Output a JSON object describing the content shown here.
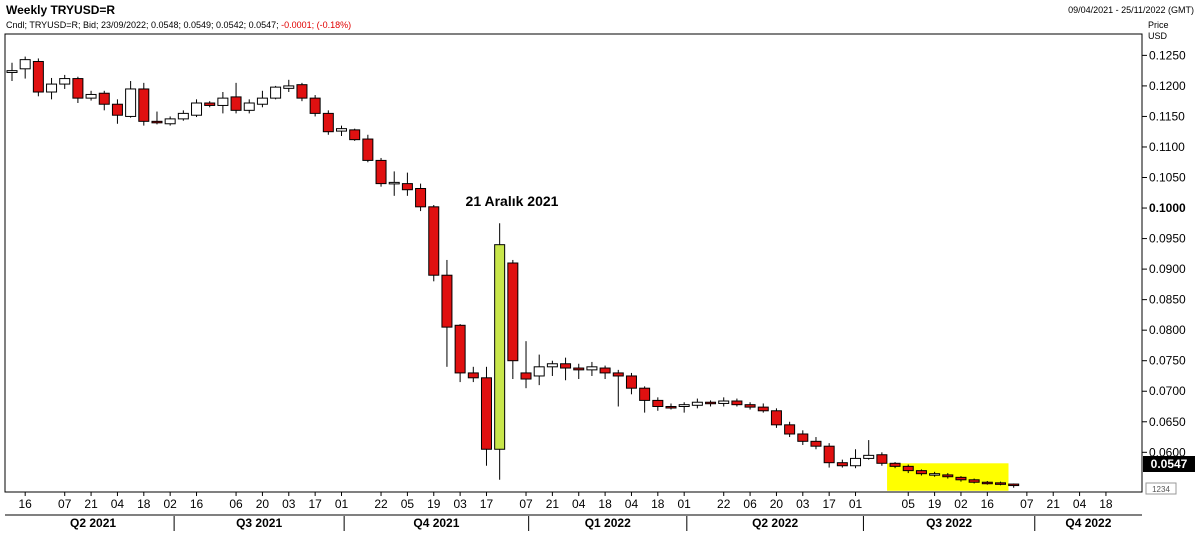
{
  "header": {
    "title": "Weekly TRYUSD=R",
    "legend_prefix": "Cndl; TRYUSD=R; Bid; 23/09/2022; 0.0548; 0.0549; 0.0542; 0.0547;",
    "legend_change": "-0.0001; (-0.18%)",
    "date_range": "09/04/2021 - 25/11/2022 (GMT)",
    "price_label_1": "Price",
    "price_label_2": "USD"
  },
  "annotation": {
    "text": "21 Aralık 2021"
  },
  "last_price": "0.0547",
  "corner_box": "1234",
  "chart_data": {
    "type": "candlestick",
    "ylim": [
      0.0535,
      0.1285
    ],
    "y_ticks": [
      {
        "value": 0.125,
        "label": "0.1250"
      },
      {
        "value": 0.12,
        "label": "0.1200"
      },
      {
        "value": 0.115,
        "label": "0.1150"
      },
      {
        "value": 0.11,
        "label": "0.1100"
      },
      {
        "value": 0.105,
        "label": "0.1050"
      },
      {
        "value": 0.1,
        "label": "0.1000"
      },
      {
        "value": 0.095,
        "label": "0.0950"
      },
      {
        "value": 0.09,
        "label": "0.0900"
      },
      {
        "value": 0.085,
        "label": "0.0850"
      },
      {
        "value": 0.08,
        "label": "0.0800"
      },
      {
        "value": 0.075,
        "label": "0.0750"
      },
      {
        "value": 0.07,
        "label": "0.0700"
      },
      {
        "value": 0.065,
        "label": "0.0650"
      },
      {
        "value": 0.06,
        "label": "0.0600"
      }
    ],
    "x_ticks": [
      {
        "week": 1,
        "label": "16"
      },
      {
        "week": 4,
        "label": "07"
      },
      {
        "week": 6,
        "label": "21"
      },
      {
        "week": 8,
        "label": "04"
      },
      {
        "week": 10,
        "label": "18"
      },
      {
        "week": 12,
        "label": "02"
      },
      {
        "week": 14,
        "label": "16"
      },
      {
        "week": 17,
        "label": "06"
      },
      {
        "week": 19,
        "label": "20"
      },
      {
        "week": 21,
        "label": "03"
      },
      {
        "week": 23,
        "label": "17"
      },
      {
        "week": 25,
        "label": "01"
      },
      {
        "week": 28,
        "label": "22"
      },
      {
        "week": 30,
        "label": "05"
      },
      {
        "week": 32,
        "label": "19"
      },
      {
        "week": 34,
        "label": "03"
      },
      {
        "week": 36,
        "label": "17"
      },
      {
        "week": 39,
        "label": "07"
      },
      {
        "week": 41,
        "label": "21"
      },
      {
        "week": 43,
        "label": "04"
      },
      {
        "week": 45,
        "label": "18"
      },
      {
        "week": 47,
        "label": "04"
      },
      {
        "week": 49,
        "label": "18"
      },
      {
        "week": 51,
        "label": "01"
      },
      {
        "week": 54,
        "label": "22"
      },
      {
        "week": 56,
        "label": "06"
      },
      {
        "week": 58,
        "label": "20"
      },
      {
        "week": 60,
        "label": "03"
      },
      {
        "week": 62,
        "label": "17"
      },
      {
        "week": 64,
        "label": "01"
      },
      {
        "week": 68,
        "label": "05"
      },
      {
        "week": 70,
        "label": "19"
      },
      {
        "week": 72,
        "label": "02"
      },
      {
        "week": 74,
        "label": "16"
      },
      {
        "week": 77,
        "label": "07"
      },
      {
        "week": 79,
        "label": "21"
      },
      {
        "week": 81,
        "label": "04"
      },
      {
        "week": 83,
        "label": "18"
      }
    ],
    "quarters": [
      "Q2 2021",
      "Q3 2021",
      "Q4 2021",
      "Q1 2022",
      "Q2 2022",
      "Q3 2022",
      "Q4 2022"
    ],
    "highlight": {
      "from_week": 67,
      "to_week": 75,
      "high": 0.0582,
      "low": 0.0537,
      "color": "#ffff00"
    },
    "special_candle_color": "#c8e64b",
    "candles": [
      {
        "week": 0,
        "open": 0.1222,
        "high": 0.1238,
        "low": 0.1208,
        "close": 0.1225
      },
      {
        "week": 1,
        "open": 0.1228,
        "high": 0.1248,
        "low": 0.1212,
        "close": 0.1243
      },
      {
        "week": 2,
        "open": 0.124,
        "high": 0.1245,
        "low": 0.1183,
        "close": 0.119
      },
      {
        "week": 3,
        "open": 0.119,
        "high": 0.1213,
        "low": 0.1178,
        "close": 0.1203
      },
      {
        "week": 4,
        "open": 0.1203,
        "high": 0.1218,
        "low": 0.1195,
        "close": 0.1212
      },
      {
        "week": 5,
        "open": 0.1212,
        "high": 0.1215,
        "low": 0.1172,
        "close": 0.118
      },
      {
        "week": 6,
        "open": 0.118,
        "high": 0.1192,
        "low": 0.1176,
        "close": 0.1186
      },
      {
        "week": 7,
        "open": 0.1188,
        "high": 0.1192,
        "low": 0.116,
        "close": 0.117
      },
      {
        "week": 8,
        "open": 0.117,
        "high": 0.1178,
        "low": 0.1138,
        "close": 0.1152
      },
      {
        "week": 9,
        "open": 0.115,
        "high": 0.1208,
        "low": 0.1148,
        "close": 0.1195
      },
      {
        "week": 10,
        "open": 0.1195,
        "high": 0.1205,
        "low": 0.1135,
        "close": 0.1142
      },
      {
        "week": 11,
        "open": 0.1142,
        "high": 0.1158,
        "low": 0.1137,
        "close": 0.114
      },
      {
        "week": 12,
        "open": 0.1138,
        "high": 0.115,
        "low": 0.1135,
        "close": 0.1146
      },
      {
        "week": 13,
        "open": 0.1146,
        "high": 0.116,
        "low": 0.1143,
        "close": 0.1155
      },
      {
        "week": 14,
        "open": 0.1152,
        "high": 0.1178,
        "low": 0.1149,
        "close": 0.1172
      },
      {
        "week": 15,
        "open": 0.1172,
        "high": 0.1175,
        "low": 0.1165,
        "close": 0.1168
      },
      {
        "week": 16,
        "open": 0.1168,
        "high": 0.119,
        "low": 0.1155,
        "close": 0.118
      },
      {
        "week": 17,
        "open": 0.1182,
        "high": 0.1205,
        "low": 0.1155,
        "close": 0.116
      },
      {
        "week": 18,
        "open": 0.116,
        "high": 0.1178,
        "low": 0.1155,
        "close": 0.1172
      },
      {
        "week": 19,
        "open": 0.117,
        "high": 0.1192,
        "low": 0.1165,
        "close": 0.118
      },
      {
        "week": 20,
        "open": 0.118,
        "high": 0.12,
        "low": 0.1178,
        "close": 0.1198
      },
      {
        "week": 21,
        "open": 0.1196,
        "high": 0.121,
        "low": 0.119,
        "close": 0.12
      },
      {
        "week": 22,
        "open": 0.1202,
        "high": 0.1205,
        "low": 0.1175,
        "close": 0.118
      },
      {
        "week": 23,
        "open": 0.118,
        "high": 0.1185,
        "low": 0.115,
        "close": 0.1155
      },
      {
        "week": 24,
        "open": 0.1155,
        "high": 0.116,
        "low": 0.112,
        "close": 0.1125
      },
      {
        "week": 25,
        "open": 0.1126,
        "high": 0.1135,
        "low": 0.1118,
        "close": 0.113
      },
      {
        "week": 26,
        "open": 0.1128,
        "high": 0.113,
        "low": 0.111,
        "close": 0.1112
      },
      {
        "week": 27,
        "open": 0.1113,
        "high": 0.112,
        "low": 0.1075,
        "close": 0.1078
      },
      {
        "week": 28,
        "open": 0.1078,
        "high": 0.1082,
        "low": 0.1035,
        "close": 0.104
      },
      {
        "week": 29,
        "open": 0.104,
        "high": 0.106,
        "low": 0.102,
        "close": 0.1042
      },
      {
        "week": 30,
        "open": 0.104,
        "high": 0.1058,
        "low": 0.102,
        "close": 0.103
      },
      {
        "week": 31,
        "open": 0.1032,
        "high": 0.104,
        "low": 0.0995,
        "close": 0.1002
      },
      {
        "week": 32,
        "open": 0.1002,
        "high": 0.1005,
        "low": 0.088,
        "close": 0.089
      },
      {
        "week": 33,
        "open": 0.089,
        "high": 0.0915,
        "low": 0.074,
        "close": 0.0805
      },
      {
        "week": 34,
        "open": 0.0808,
        "high": 0.081,
        "low": 0.0715,
        "close": 0.073
      },
      {
        "week": 35,
        "open": 0.073,
        "high": 0.074,
        "low": 0.0715,
        "close": 0.0722
      },
      {
        "week": 36,
        "open": 0.0722,
        "high": 0.074,
        "low": 0.0578,
        "close": 0.0605
      },
      {
        "week": 37,
        "open": 0.0605,
        "high": 0.0975,
        "low": 0.0555,
        "close": 0.094,
        "special": true
      },
      {
        "week": 38,
        "open": 0.091,
        "high": 0.0915,
        "low": 0.072,
        "close": 0.075
      },
      {
        "week": 39,
        "open": 0.073,
        "high": 0.0782,
        "low": 0.0705,
        "close": 0.072
      },
      {
        "week": 40,
        "open": 0.0725,
        "high": 0.076,
        "low": 0.071,
        "close": 0.074
      },
      {
        "week": 41,
        "open": 0.074,
        "high": 0.075,
        "low": 0.0725,
        "close": 0.0745
      },
      {
        "week": 42,
        "open": 0.0745,
        "high": 0.0755,
        "low": 0.0718,
        "close": 0.0738
      },
      {
        "week": 43,
        "open": 0.0738,
        "high": 0.0745,
        "low": 0.072,
        "close": 0.0735
      },
      {
        "week": 44,
        "open": 0.0735,
        "high": 0.0748,
        "low": 0.0725,
        "close": 0.074
      },
      {
        "week": 45,
        "open": 0.0738,
        "high": 0.0742,
        "low": 0.072,
        "close": 0.073
      },
      {
        "week": 46,
        "open": 0.073,
        "high": 0.0735,
        "low": 0.0675,
        "close": 0.0725
      },
      {
        "week": 47,
        "open": 0.0725,
        "high": 0.073,
        "low": 0.0695,
        "close": 0.0705
      },
      {
        "week": 48,
        "open": 0.0705,
        "high": 0.0708,
        "low": 0.0665,
        "close": 0.0685
      },
      {
        "week": 49,
        "open": 0.0685,
        "high": 0.069,
        "low": 0.0668,
        "close": 0.0675
      },
      {
        "week": 50,
        "open": 0.0675,
        "high": 0.068,
        "low": 0.067,
        "close": 0.0673
      },
      {
        "week": 51,
        "open": 0.0675,
        "high": 0.0682,
        "low": 0.0665,
        "close": 0.0678
      },
      {
        "week": 52,
        "open": 0.0677,
        "high": 0.0688,
        "low": 0.0672,
        "close": 0.0682
      },
      {
        "week": 53,
        "open": 0.0682,
        "high": 0.0685,
        "low": 0.0675,
        "close": 0.068
      },
      {
        "week": 54,
        "open": 0.068,
        "high": 0.069,
        "low": 0.0675,
        "close": 0.0684
      },
      {
        "week": 55,
        "open": 0.0684,
        "high": 0.0688,
        "low": 0.0675,
        "close": 0.0678
      },
      {
        "week": 56,
        "open": 0.0678,
        "high": 0.0682,
        "low": 0.067,
        "close": 0.0674
      },
      {
        "week": 57,
        "open": 0.0674,
        "high": 0.068,
        "low": 0.0665,
        "close": 0.0668
      },
      {
        "week": 58,
        "open": 0.0668,
        "high": 0.0672,
        "low": 0.064,
        "close": 0.0645
      },
      {
        "week": 59,
        "open": 0.0645,
        "high": 0.065,
        "low": 0.0625,
        "close": 0.063
      },
      {
        "week": 60,
        "open": 0.063,
        "high": 0.0636,
        "low": 0.0612,
        "close": 0.0618
      },
      {
        "week": 61,
        "open": 0.0618,
        "high": 0.0625,
        "low": 0.0605,
        "close": 0.061
      },
      {
        "week": 62,
        "open": 0.061,
        "high": 0.0615,
        "low": 0.0575,
        "close": 0.0583
      },
      {
        "week": 63,
        "open": 0.0583,
        "high": 0.0588,
        "low": 0.0575,
        "close": 0.0578
      },
      {
        "week": 64,
        "open": 0.0578,
        "high": 0.0605,
        "low": 0.0574,
        "close": 0.059
      },
      {
        "week": 65,
        "open": 0.059,
        "high": 0.062,
        "low": 0.0588,
        "close": 0.0595
      },
      {
        "week": 66,
        "open": 0.0596,
        "high": 0.06,
        "low": 0.0578,
        "close": 0.0582
      },
      {
        "week": 67,
        "open": 0.0582,
        "high": 0.0584,
        "low": 0.0574,
        "close": 0.0577
      },
      {
        "week": 68,
        "open": 0.0577,
        "high": 0.058,
        "low": 0.0566,
        "close": 0.057
      },
      {
        "week": 69,
        "open": 0.057,
        "high": 0.0572,
        "low": 0.0562,
        "close": 0.0565
      },
      {
        "week": 70,
        "open": 0.0563,
        "high": 0.0568,
        "low": 0.056,
        "close": 0.0565
      },
      {
        "week": 71,
        "open": 0.0563,
        "high": 0.0566,
        "low": 0.0557,
        "close": 0.056
      },
      {
        "week": 72,
        "open": 0.0559,
        "high": 0.0561,
        "low": 0.0552,
        "close": 0.0555
      },
      {
        "week": 73,
        "open": 0.0555,
        "high": 0.0557,
        "low": 0.0549,
        "close": 0.0551
      },
      {
        "week": 74,
        "open": 0.0551,
        "high": 0.0553,
        "low": 0.0547,
        "close": 0.0549
      },
      {
        "week": 75,
        "open": 0.055,
        "high": 0.0552,
        "low": 0.0546,
        "close": 0.0548
      },
      {
        "week": 76,
        "open": 0.0548,
        "high": 0.0549,
        "low": 0.0542,
        "close": 0.0547
      }
    ]
  }
}
